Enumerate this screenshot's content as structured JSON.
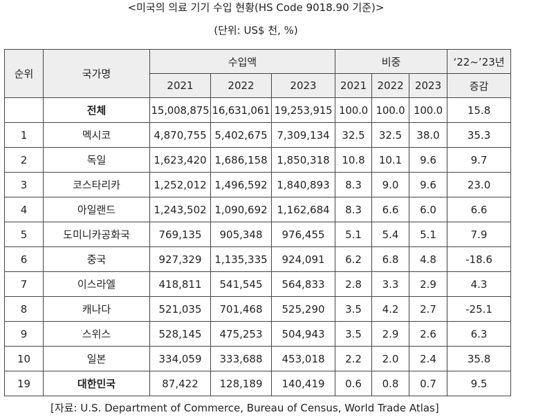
{
  "title": "<미국의 의료 기기 수입 현황(HS Code 9018.90 기준)>",
  "unit_note": "(단위: US$ 천, %)",
  "table": {
    "header": {
      "rank": "순위",
      "country": "국가명",
      "import_amount": "수입액",
      "share": "비중",
      "change_top": "‘22~’23년",
      "change_bottom": "증감",
      "years": [
        "2021",
        "2022",
        "2023"
      ]
    },
    "rows": [
      {
        "rank": "",
        "country": "전체",
        "imp2021": "15,008,875",
        "imp2022": "16,631,061",
        "imp2023": "19,253,915",
        "sh2021": "100.0",
        "sh2022": "100.0",
        "sh2023": "100.0",
        "change": "15.8"
      },
      {
        "rank": "1",
        "country": "멕시코",
        "imp2021": "4,870,755",
        "imp2022": "5,402,675",
        "imp2023": "7,309,134",
        "sh2021": "32.5",
        "sh2022": "32.5",
        "sh2023": "38.0",
        "change": "35.3"
      },
      {
        "rank": "2",
        "country": "독일",
        "imp2021": "1,623,420",
        "imp2022": "1,686,158",
        "imp2023": "1,850,318",
        "sh2021": "10.8",
        "sh2022": "10.1",
        "sh2023": "9.6",
        "change": "9.7"
      },
      {
        "rank": "3",
        "country": "코스타리카",
        "imp2021": "1,252,012",
        "imp2022": "1,496,592",
        "imp2023": "1,840,893",
        "sh2021": "8.3",
        "sh2022": "9.0",
        "sh2023": "9.6",
        "change": "23.0"
      },
      {
        "rank": "4",
        "country": "아일랜드",
        "imp2021": "1,243,502",
        "imp2022": "1,090,692",
        "imp2023": "1,162,684",
        "sh2021": "8.3",
        "sh2022": "6.6",
        "sh2023": "6.0",
        "change": "6.6"
      },
      {
        "rank": "5",
        "country": "도미니카공화국",
        "imp2021": "769,135",
        "imp2022": "905,348",
        "imp2023": "976,455",
        "sh2021": "5.1",
        "sh2022": "5.4",
        "sh2023": "5.1",
        "change": "7.9"
      },
      {
        "rank": "6",
        "country": "중국",
        "imp2021": "927,329",
        "imp2022": "1,135,335",
        "imp2023": "924,091",
        "sh2021": "6.2",
        "sh2022": "6.8",
        "sh2023": "4.8",
        "change": "-18.6"
      },
      {
        "rank": "7",
        "country": "이스라엘",
        "imp2021": "418,811",
        "imp2022": "541,545",
        "imp2023": "564,833",
        "sh2021": "2.8",
        "sh2022": "3.3",
        "sh2023": "2.9",
        "change": "4.3"
      },
      {
        "rank": "8",
        "country": "캐나다",
        "imp2021": "521,035",
        "imp2022": "701,468",
        "imp2023": "525,290",
        "sh2021": "3.5",
        "sh2022": "4.2",
        "sh2023": "2.7",
        "change": "-25.1"
      },
      {
        "rank": "9",
        "country": "스위스",
        "imp2021": "528,145",
        "imp2022": "475,253",
        "imp2023": "504,943",
        "sh2021": "3.5",
        "sh2022": "2.9",
        "sh2023": "2.6",
        "change": "6.3"
      },
      {
        "rank": "10",
        "country": "일본",
        "imp2021": "334,059",
        "imp2022": "333,688",
        "imp2023": "453,018",
        "sh2021": "2.2",
        "sh2022": "2.0",
        "sh2023": "2.4",
        "change": "35.8"
      },
      {
        "rank": "19",
        "country": "대한민국",
        "imp2021": "87,422",
        "imp2022": "128,189",
        "imp2023": "140,419",
        "sh2021": "0.6",
        "sh2022": "0.8",
        "sh2023": "0.7",
        "change": "9.5"
      }
    ]
  },
  "source": "[자료: U.S. Department of Commerce, Bureau of Census, World Trade Atlas]"
}
